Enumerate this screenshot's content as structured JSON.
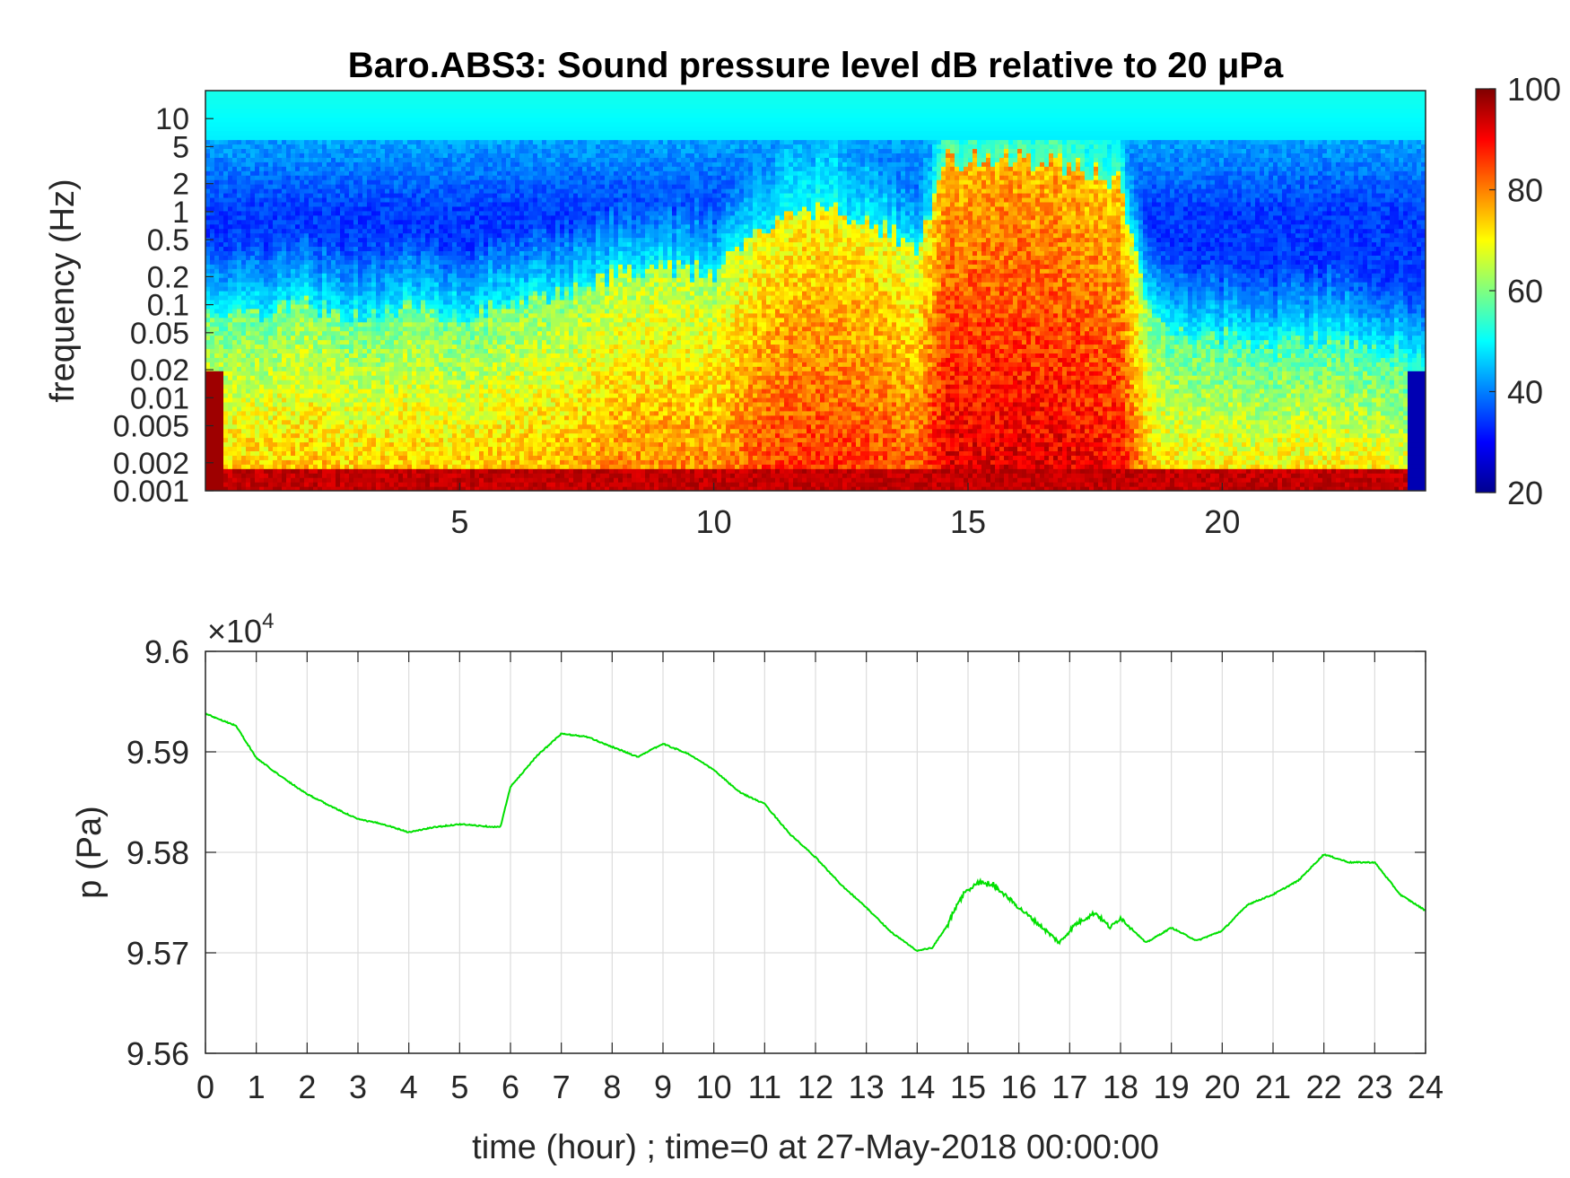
{
  "chart_data": [
    {
      "type": "heatmap",
      "title": "Baro.ABS3: Sound pressure level dB relative to 20 μPa",
      "ylabel": "frequency (Hz)",
      "y_scale": "log",
      "xlim": [
        0,
        24
      ],
      "ylim": [
        0.001,
        20
      ],
      "x_ticks": [
        5,
        10,
        15,
        20
      ],
      "y_ticks": [
        0.001,
        0.002,
        0.005,
        0.01,
        0.02,
        0.05,
        0.1,
        0.2,
        0.5,
        1,
        2,
        5,
        10
      ],
      "y_tick_labels": [
        "0.001",
        "0.002",
        "0.005",
        "0.01",
        "0.02",
        "0.05",
        "0.1",
        "0.2",
        "0.5",
        "1",
        "2",
        "5",
        "10"
      ],
      "colorbar": {
        "range": [
          20,
          100
        ],
        "ticks": [
          20,
          40,
          60,
          80,
          100
        ],
        "colormap": "jet"
      },
      "intensity_profile": {
        "hours": [
          0,
          1,
          2,
          3,
          4,
          5,
          6,
          7,
          8,
          9,
          10,
          11,
          12,
          13,
          14,
          14.6,
          15,
          16,
          17,
          18,
          18.6,
          19,
          20,
          21,
          22,
          23,
          24
        ],
        "level": [
          0.45,
          0.45,
          0.5,
          0.45,
          0.48,
          0.45,
          0.5,
          0.52,
          0.6,
          0.62,
          0.6,
          0.78,
          0.82,
          0.8,
          0.7,
          1.0,
          1.0,
          1.0,
          0.98,
          0.92,
          0.45,
          0.4,
          0.38,
          0.36,
          0.38,
          0.36,
          0.3
        ]
      }
    },
    {
      "type": "line",
      "ylabel": "p (Pa)",
      "xlabel": "time (hour) ; time=0 at 27-May-2018 00:00:00",
      "y_exponent_label": "×10",
      "y_exponent": "4",
      "xlim": [
        0,
        24
      ],
      "ylim": [
        9.56,
        9.6
      ],
      "x_ticks": [
        0,
        1,
        2,
        3,
        4,
        5,
        6,
        7,
        8,
        9,
        10,
        11,
        12,
        13,
        14,
        15,
        16,
        17,
        18,
        19,
        20,
        21,
        22,
        23,
        24
      ],
      "y_ticks": [
        9.56,
        9.57,
        9.58,
        9.59,
        9.6
      ],
      "y_tick_labels": [
        "9.56",
        "9.57",
        "9.58",
        "9.59",
        "9.6"
      ],
      "grid": true,
      "line_color": "#00e000",
      "series": [
        {
          "x": [
            0,
            0.3,
            0.6,
            1,
            1.5,
            2,
            2.5,
            3,
            3.5,
            4,
            4.5,
            5,
            5.5,
            5.8,
            6,
            6.5,
            7,
            7.5,
            8,
            8.5,
            9,
            9.5,
            10,
            10.5,
            11,
            11.5,
            12,
            12.5,
            13,
            13.5,
            14,
            14.3,
            14.6,
            14.9,
            15.2,
            15.5,
            16,
            16.4,
            16.8,
            17.1,
            17.5,
            17.8,
            18,
            18.5,
            19,
            19.5,
            20,
            20.5,
            21,
            21.5,
            22,
            22.5,
            23,
            23.5,
            24
          ],
          "y": [
            9.5938,
            9.5932,
            9.5926,
            9.5894,
            9.5875,
            9.5858,
            9.5845,
            9.5833,
            9.5828,
            9.582,
            9.5825,
            9.5828,
            9.5826,
            9.5825,
            9.5865,
            9.5895,
            9.5918,
            9.5915,
            9.5905,
            9.5895,
            9.5908,
            9.5898,
            9.5882,
            9.586,
            9.5848,
            9.5818,
            9.5795,
            9.5768,
            9.5745,
            9.572,
            9.5702,
            9.5705,
            9.5728,
            9.5758,
            9.577,
            9.5768,
            9.5745,
            9.5728,
            9.571,
            9.5728,
            9.574,
            9.5725,
            9.5735,
            9.571,
            9.5725,
            9.5712,
            9.5722,
            9.5748,
            9.5758,
            9.5772,
            9.5798,
            9.579,
            9.579,
            9.5758,
            9.5742
          ]
        }
      ]
    }
  ]
}
